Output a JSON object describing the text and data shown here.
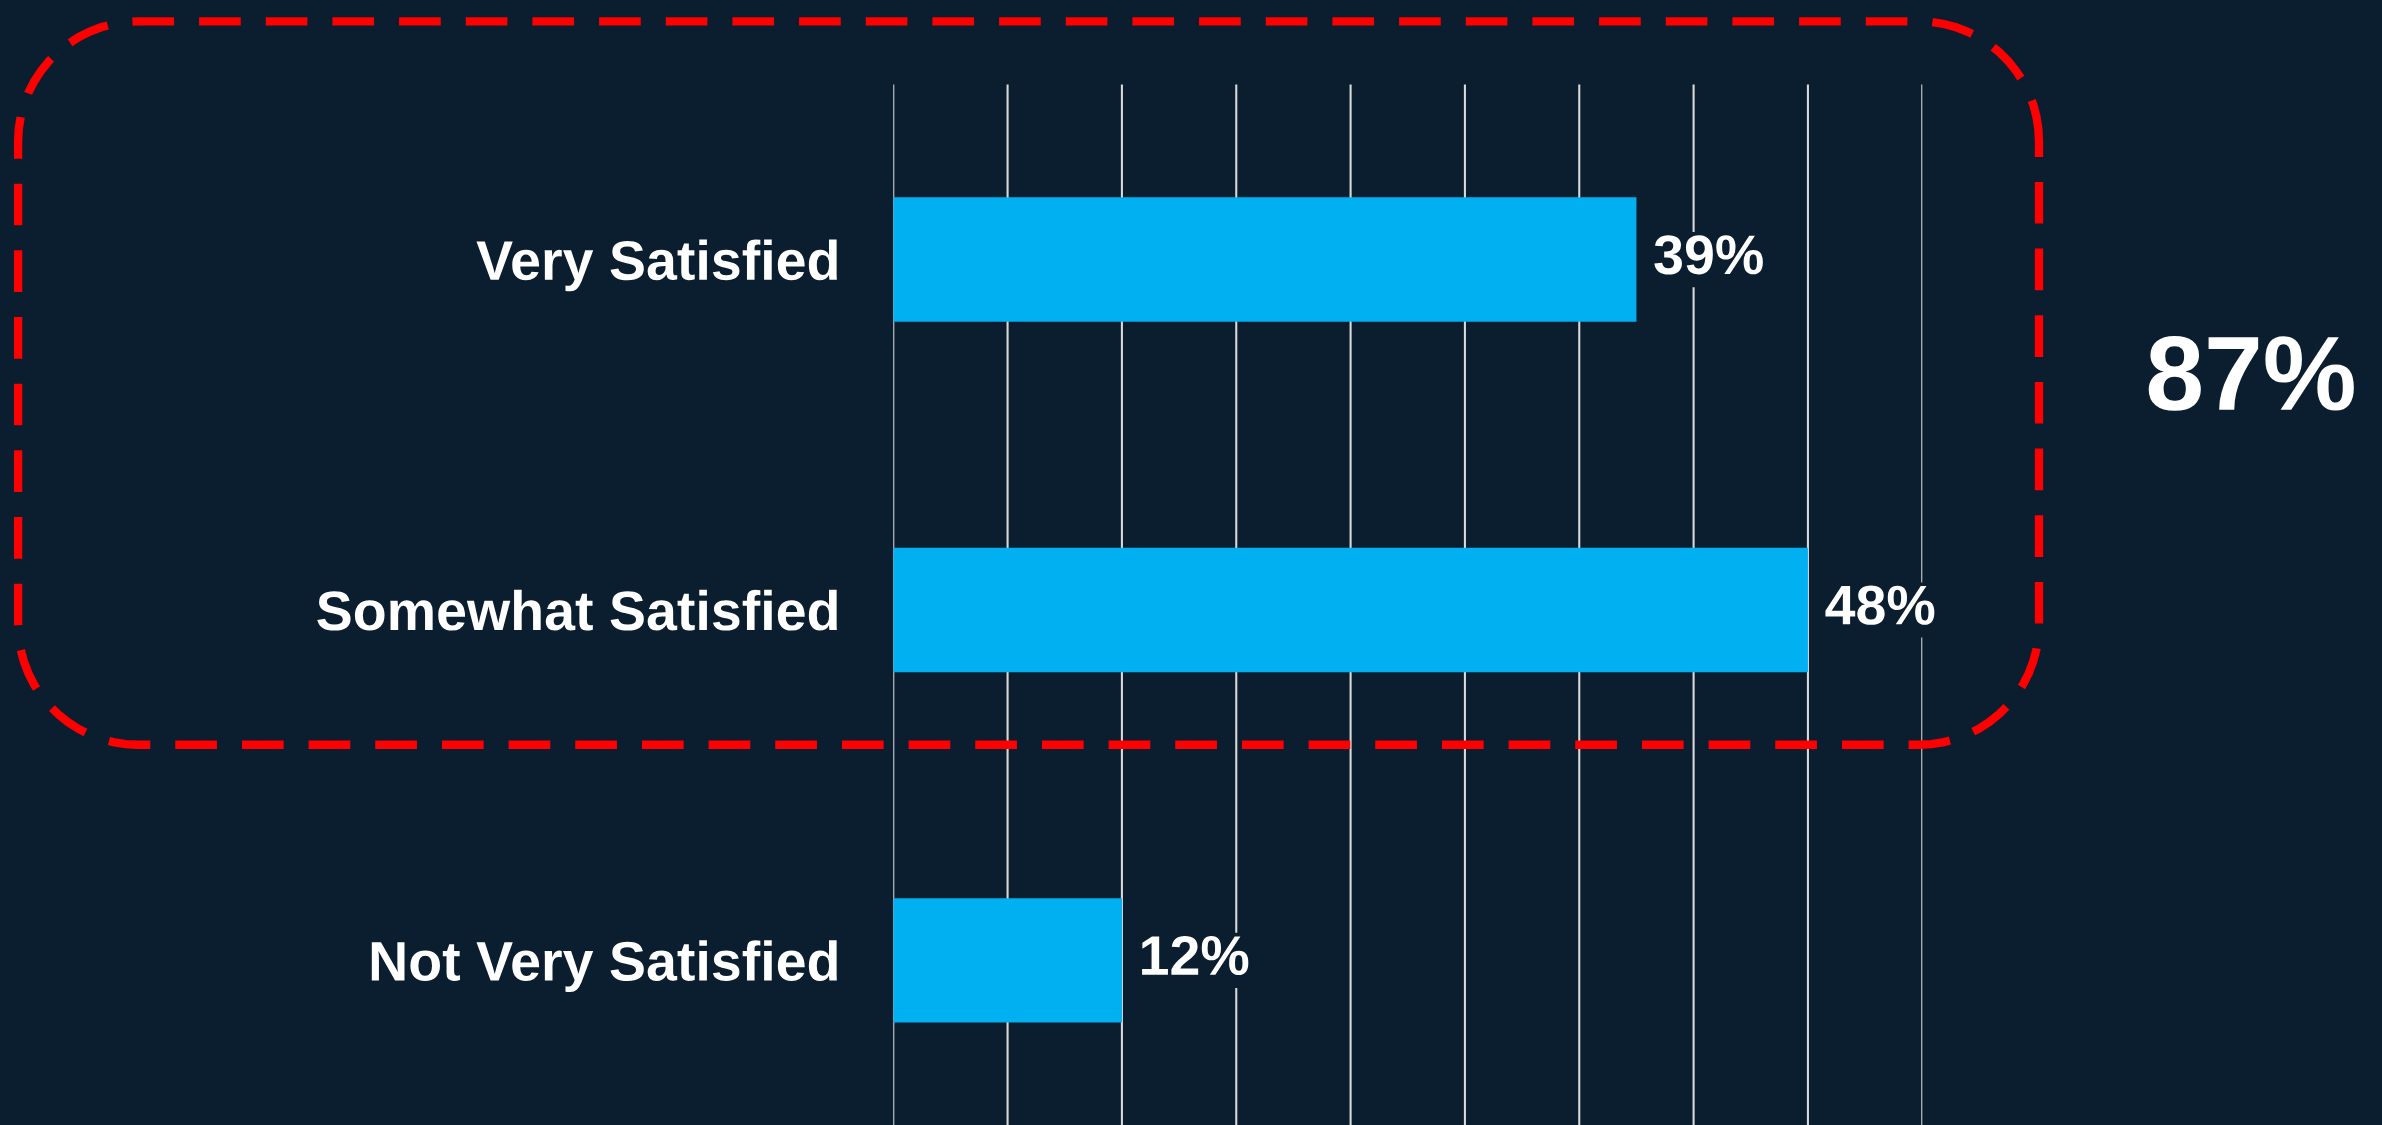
{
  "chart_data": {
    "type": "bar",
    "orientation": "horizontal",
    "categories": [
      "Very Satisfied",
      "Somewhat Satisfied",
      "Not Very Satisfied"
    ],
    "values": [
      39,
      48,
      12
    ],
    "color": "#00b0f0",
    "value_labels": [
      "39%",
      "48%",
      "12%"
    ],
    "xlim": [
      0,
      54
    ],
    "xticks": [
      {
        "value": 0,
        "label": null
      },
      {
        "value": 6,
        "label": null
      },
      {
        "value": 12,
        "label": null
      },
      {
        "value": 18,
        "label": null
      },
      {
        "value": 24,
        "label": null
      },
      {
        "value": 30,
        "label": null
      },
      {
        "value": 36,
        "label": null
      },
      {
        "value": 42,
        "label": null
      },
      {
        "value": 48,
        "label": null
      },
      {
        "value": 54,
        "label": null
      }
    ],
    "grid": "x",
    "tick_labels": "y",
    "annotations": [
      "87%"
    ]
  }
}
